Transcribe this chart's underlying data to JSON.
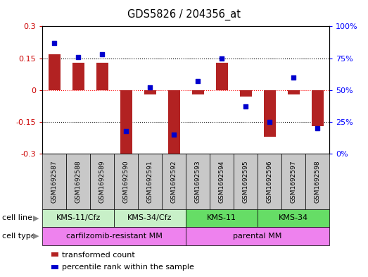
{
  "title": "GDS5826 / 204356_at",
  "samples": [
    "GSM1692587",
    "GSM1692588",
    "GSM1692589",
    "GSM1692590",
    "GSM1692591",
    "GSM1692592",
    "GSM1692593",
    "GSM1692594",
    "GSM1692595",
    "GSM1692596",
    "GSM1692597",
    "GSM1692598"
  ],
  "bar_values": [
    0.17,
    0.13,
    0.13,
    -0.3,
    -0.02,
    -0.3,
    -0.02,
    0.13,
    -0.03,
    -0.22,
    -0.02,
    -0.17
  ],
  "percentile_values": [
    87,
    76,
    78,
    18,
    52,
    15,
    57,
    75,
    37,
    25,
    60,
    20
  ],
  "bar_color": "#b22222",
  "dot_color": "#0000cd",
  "ylim_left": [
    -0.3,
    0.3
  ],
  "ylim_right": [
    0,
    100
  ],
  "yticks_left": [
    -0.3,
    -0.15,
    0.0,
    0.15,
    0.3
  ],
  "yticks_right": [
    0,
    25,
    50,
    75,
    100
  ],
  "ytick_labels_left": [
    "-0.3",
    "-0.15",
    "0",
    "0.15",
    "0.3"
  ],
  "ytick_labels_right": [
    "0%",
    "25%",
    "50%",
    "75%",
    "100%"
  ],
  "hlines": [
    -0.15,
    0.0,
    0.15
  ],
  "hline_colors": [
    "black",
    "red",
    "black"
  ],
  "hline_styles": [
    "dotted",
    "dotted",
    "dotted"
  ],
  "cell_line_groups": [
    {
      "label": "KMS-11/Cfz",
      "start": 0,
      "end": 3,
      "color": "#c8f0c8"
    },
    {
      "label": "KMS-34/Cfz",
      "start": 3,
      "end": 6,
      "color": "#c8f0c8"
    },
    {
      "label": "KMS-11",
      "start": 6,
      "end": 9,
      "color": "#66dd66"
    },
    {
      "label": "KMS-34",
      "start": 9,
      "end": 12,
      "color": "#66dd66"
    }
  ],
  "cell_type_groups": [
    {
      "label": "carfilzomib-resistant MM",
      "start": 0,
      "end": 6,
      "color": "#ee82ee"
    },
    {
      "label": "parental MM",
      "start": 6,
      "end": 12,
      "color": "#ee82ee"
    }
  ],
  "cell_line_label": "cell line",
  "cell_type_label": "cell type",
  "legend_items": [
    {
      "label": "transformed count",
      "color": "#b22222"
    },
    {
      "label": "percentile rank within the sample",
      "color": "#0000cd"
    }
  ],
  "bar_width": 0.5,
  "left_tick_color": "#cc0000",
  "right_tick_color": "#0000ff",
  "sample_box_color": "#c8c8c8",
  "arrow_color": "#888888"
}
